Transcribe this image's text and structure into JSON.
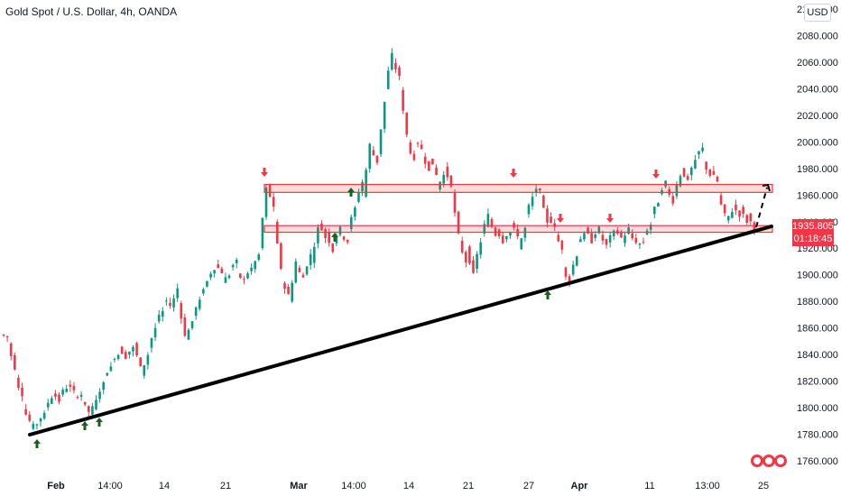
{
  "header": {
    "title": "Gold Spot / U.S. Dollar, 4h, OANDA",
    "currency": "USD"
  },
  "last_price": {
    "price": "1935.805",
    "countdown": "01:18:45"
  },
  "colors": {
    "up": "#089981",
    "down": "#f23645",
    "zone_fill": "#f23645",
    "trendline": "#000000",
    "arrow_up": "#1b5e20",
    "arrow_down": "#f23645"
  },
  "chart_data": {
    "type": "candlestick",
    "title": "Gold Spot / U.S. Dollar, 4h, OANDA",
    "ylim": [
      1750,
      2100
    ],
    "y_ticks": [
      "2100.000",
      "2080.000",
      "2060.000",
      "2040.000",
      "2020.000",
      "2000.000",
      "1980.000",
      "1960.000",
      "1940.000",
      "1920.000",
      "1900.000",
      "1880.000",
      "1860.000",
      "1840.000",
      "1820.000",
      "1800.000",
      "1780.000",
      "1760.000"
    ],
    "x_ticks": [
      {
        "label": "Feb",
        "bold": true
      },
      {
        "label": "14:00",
        "bold": false
      },
      {
        "label": "14",
        "bold": false
      },
      {
        "label": "21",
        "bold": false
      },
      {
        "label": "Mar",
        "bold": true
      },
      {
        "label": "14:00",
        "bold": false
      },
      {
        "label": "14",
        "bold": false
      },
      {
        "label": "21",
        "bold": false
      },
      {
        "label": "27",
        "bold": false
      },
      {
        "label": "Apr",
        "bold": true
      },
      {
        "label": "11",
        "bold": false
      },
      {
        "label": "13:00",
        "bold": false
      },
      {
        "label": "25",
        "bold": false
      }
    ],
    "path_points": [
      [
        1855,
        1853
      ],
      [
        1848,
        1830
      ],
      [
        1822,
        1810
      ],
      [
        1800,
        1790
      ],
      [
        1785,
        1788
      ],
      [
        1790,
        1795
      ],
      [
        1800,
        1808
      ],
      [
        1812,
        1805
      ],
      [
        1810,
        1815
      ],
      [
        1818,
        1812
      ],
      [
        1808,
        1810
      ],
      [
        1805,
        1797
      ],
      [
        1795,
        1805
      ],
      [
        1808,
        1818
      ],
      [
        1825,
        1830
      ],
      [
        1836,
        1840
      ],
      [
        1845,
        1838
      ],
      [
        1840,
        1845
      ],
      [
        1848,
        1830
      ],
      [
        1825,
        1840
      ],
      [
        1845,
        1860
      ],
      [
        1865,
        1872
      ],
      [
        1880,
        1878
      ],
      [
        1875,
        1890
      ],
      [
        1880,
        1855
      ],
      [
        1852,
        1865
      ],
      [
        1870,
        1880
      ],
      [
        1885,
        1895
      ],
      [
        1898,
        1905
      ],
      [
        1908,
        1902
      ],
      [
        1895,
        1900
      ],
      [
        1905,
        1910
      ],
      [
        1900,
        1896
      ],
      [
        1898,
        1905
      ],
      [
        1905,
        1915
      ],
      [
        1920,
        1965
      ],
      [
        1968,
        1950
      ],
      [
        1940,
        1905
      ],
      [
        1895,
        1885
      ],
      [
        1880,
        1910
      ],
      [
        1905,
        1898
      ],
      [
        1900,
        1915
      ],
      [
        1910,
        1935
      ],
      [
        1940,
        1928
      ],
      [
        1932,
        1918
      ],
      [
        1925,
        1935
      ],
      [
        1930,
        1925
      ],
      [
        1935,
        1950
      ],
      [
        1955,
        1970
      ],
      [
        1960,
        1998
      ],
      [
        1995,
        1985
      ],
      [
        1990,
        2030
      ],
      [
        2040,
        2066
      ],
      [
        2060,
        2050
      ],
      [
        2040,
        2005
      ],
      [
        2000,
        1985
      ],
      [
        2000,
        1995
      ],
      [
        1990,
        1980
      ],
      [
        1988,
        1975
      ],
      [
        1965,
        1975
      ],
      [
        1980,
        1968
      ],
      [
        1962,
        1930
      ],
      [
        1925,
        1910
      ],
      [
        1920,
        1900
      ],
      [
        1905,
        1925
      ],
      [
        1930,
        1945
      ],
      [
        1942,
        1930
      ],
      [
        1935,
        1925
      ],
      [
        1928,
        1932
      ],
      [
        1938,
        1930
      ],
      [
        1920,
        1935
      ],
      [
        1945,
        1958
      ],
      [
        1962,
        1965
      ],
      [
        1958,
        1940
      ],
      [
        1945,
        1935
      ],
      [
        1930,
        1920
      ],
      [
        1905,
        1895
      ],
      [
        1900,
        1915
      ],
      [
        1925,
        1930
      ],
      [
        1935,
        1925
      ],
      [
        1928,
        1935
      ],
      [
        1930,
        1922
      ],
      [
        1925,
        1932
      ],
      [
        1935,
        1928
      ],
      [
        1925,
        1935
      ],
      [
        1930,
        1925
      ],
      [
        1922,
        1925
      ],
      [
        1930,
        1938
      ],
      [
        1945,
        1955
      ],
      [
        1960,
        1970
      ],
      [
        1965,
        1955
      ],
      [
        1960,
        1975
      ],
      [
        1980,
        1970
      ],
      [
        1975,
        1985
      ],
      [
        1990,
        1995
      ],
      [
        1985,
        1975
      ],
      [
        1978,
        1970
      ],
      [
        1960,
        1945
      ],
      [
        1940,
        1948
      ],
      [
        1952,
        1945
      ],
      [
        1950,
        1940
      ],
      [
        1945,
        1935
      ]
    ],
    "zones": [
      {
        "from": 1962,
        "to": 1968
      },
      {
        "from": 1932,
        "to": 1937
      }
    ]
  }
}
